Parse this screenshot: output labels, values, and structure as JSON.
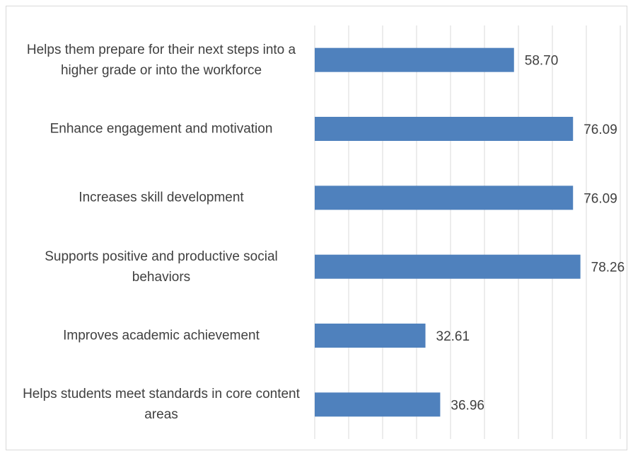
{
  "chart_data": {
    "type": "bar",
    "orientation": "horizontal",
    "categories": [
      "Helps them prepare for their next steps into a higher grade or into the workforce",
      "Enhance engagement and motivation",
      "Increases skill development",
      "Supports positive and productive social behaviors",
      "Improves academic achievement",
      "Helps students meet standards in core content areas"
    ],
    "values": [
      58.7,
      76.09,
      76.09,
      78.26,
      32.61,
      36.96
    ],
    "value_labels": [
      "58.70",
      "76.09",
      "76.09",
      "78.26",
      "32.61",
      "36.96"
    ],
    "color": "#4f81bd",
    "xlim": [
      0,
      90
    ],
    "xticks": [
      0,
      10,
      20,
      30,
      40,
      50,
      60,
      70,
      80,
      90
    ],
    "grid": true
  }
}
